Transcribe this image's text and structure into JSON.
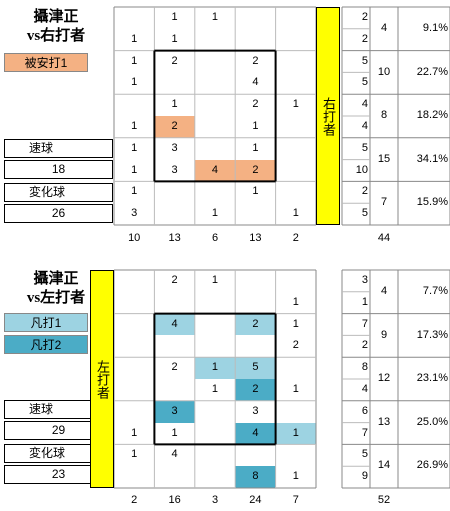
{
  "chart_data": [
    {
      "type": "heatmap",
      "title": "攝津正",
      "subtitle": "vs右打者",
      "side_label": "右打者",
      "legend": [
        {
          "label": "被安打1",
          "color": "#f4b183"
        }
      ],
      "pitch_counts": [
        {
          "label": "速球",
          "value": "18"
        },
        {
          "label": "変化球",
          "value": "26"
        }
      ],
      "rows": [
        [
          "",
          "1",
          "1",
          "",
          ""
        ],
        [
          "1",
          "1",
          "",
          "",
          ""
        ],
        [
          "1",
          "2",
          "",
          "2",
          ""
        ],
        [
          "1",
          "",
          "",
          "4",
          ""
        ],
        [
          "",
          "1",
          "",
          "2",
          "1"
        ],
        [
          "1",
          "2",
          "",
          "1",
          ""
        ],
        [
          "1",
          "3",
          "",
          "1",
          ""
        ],
        [
          "1",
          "3",
          "4",
          "2",
          ""
        ],
        [
          "1",
          "",
          "",
          "1",
          ""
        ],
        [
          "3",
          "",
          "1",
          "",
          "1"
        ]
      ],
      "highlights": [
        {
          "row": 5,
          "col": 1,
          "color": "#f4b183"
        },
        {
          "row": 7,
          "col": 2,
          "color": "#f4b183"
        },
        {
          "row": 7,
          "col": 3,
          "color": "#f4b183"
        }
      ],
      "row_sums": [
        "2",
        "2",
        "5",
        "5",
        "4",
        "4",
        "5",
        "10",
        "2",
        "5"
      ],
      "pair_sums": [
        "4",
        "10",
        "8",
        "15",
        "7"
      ],
      "pair_pcts": [
        "9.1%",
        "22.7%",
        "18.2%",
        "34.1%",
        "15.9%"
      ],
      "col_sums": [
        "10",
        "13",
        "6",
        "13",
        "2"
      ],
      "total": "44"
    },
    {
      "type": "heatmap",
      "title": "攝津正",
      "subtitle": "vs左打者",
      "side_label": "左打者",
      "legend": [
        {
          "label": "凡打1",
          "color": "#9dd3e2"
        },
        {
          "label": "凡打2",
          "color": "#4bacc6"
        }
      ],
      "pitch_counts": [
        {
          "label": "速球",
          "value": "29"
        },
        {
          "label": "変化球",
          "value": "23"
        }
      ],
      "rows": [
        [
          "",
          "2",
          "1",
          "",
          ""
        ],
        [
          "",
          "",
          "",
          "",
          "1"
        ],
        [
          "",
          "4",
          "",
          "2",
          "1"
        ],
        [
          "",
          "",
          "",
          "",
          "2"
        ],
        [
          "",
          "2",
          "1",
          "5",
          ""
        ],
        [
          "",
          "",
          "1",
          "2",
          "1"
        ],
        [
          "",
          "3",
          "",
          "3",
          ""
        ],
        [
          "1",
          "1",
          "",
          "4",
          "1"
        ],
        [
          "1",
          "4",
          "",
          "",
          ""
        ],
        [
          "",
          "",
          "",
          "8",
          "1"
        ]
      ],
      "highlights": [
        {
          "row": 2,
          "col": 1,
          "color": "#9dd3e2"
        },
        {
          "row": 2,
          "col": 3,
          "color": "#9dd3e2"
        },
        {
          "row": 4,
          "col": 2,
          "color": "#9dd3e2"
        },
        {
          "row": 4,
          "col": 3,
          "color": "#9dd3e2"
        },
        {
          "row": 5,
          "col": 3,
          "color": "#4bacc6"
        },
        {
          "row": 6,
          "col": 1,
          "color": "#4bacc6"
        },
        {
          "row": 7,
          "col": 3,
          "color": "#4bacc6"
        },
        {
          "row": 7,
          "col": 4,
          "color": "#9dd3e2"
        },
        {
          "row": 9,
          "col": 3,
          "color": "#4bacc6"
        }
      ],
      "row_sums": [
        "3",
        "1",
        "7",
        "2",
        "8",
        "4",
        "6",
        "7",
        "5",
        "9"
      ],
      "pair_sums": [
        "4",
        "9",
        "12",
        "13",
        "14"
      ],
      "pair_pcts": [
        "7.7%",
        "17.3%",
        "23.1%",
        "25.0%",
        "26.9%"
      ],
      "col_sums": [
        "2",
        "16",
        "3",
        "24",
        "7"
      ],
      "total": "52"
    }
  ]
}
